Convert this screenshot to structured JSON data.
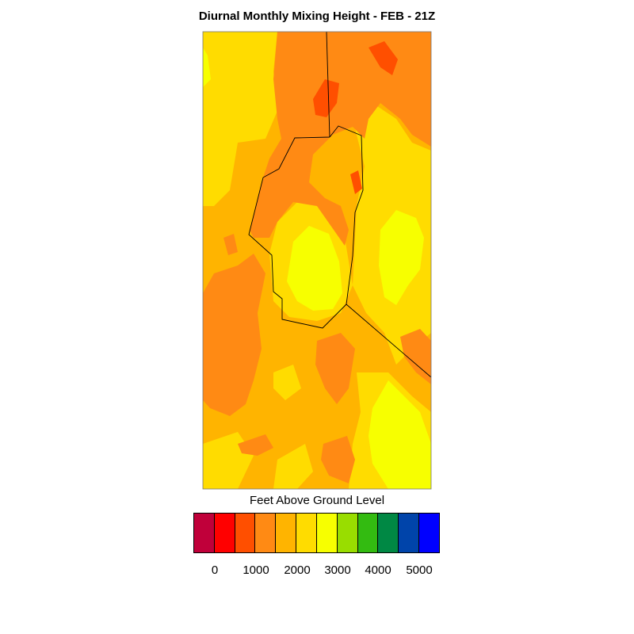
{
  "title": "Diurnal Monthly Mixing Height - FEB - 21Z",
  "colorbar": {
    "title": "Feet Above Ground Level",
    "colors": [
      "#c0003a",
      "#ff0000",
      "#ff4f00",
      "#ff8a14",
      "#ffb400",
      "#ffdc00",
      "#f7ff00",
      "#99dd00",
      "#33bb11",
      "#008844",
      "#0044aa",
      "#0000ff"
    ],
    "ticks": [
      "0",
      "1000",
      "2000",
      "3000",
      "4000",
      "5000"
    ]
  },
  "palette": {
    "orange_dark": "#ff8a14",
    "orange": "#ffb400",
    "gold": "#ffdc00",
    "yellow": "#f7ff00",
    "red_orange": "#ff4f00"
  }
}
